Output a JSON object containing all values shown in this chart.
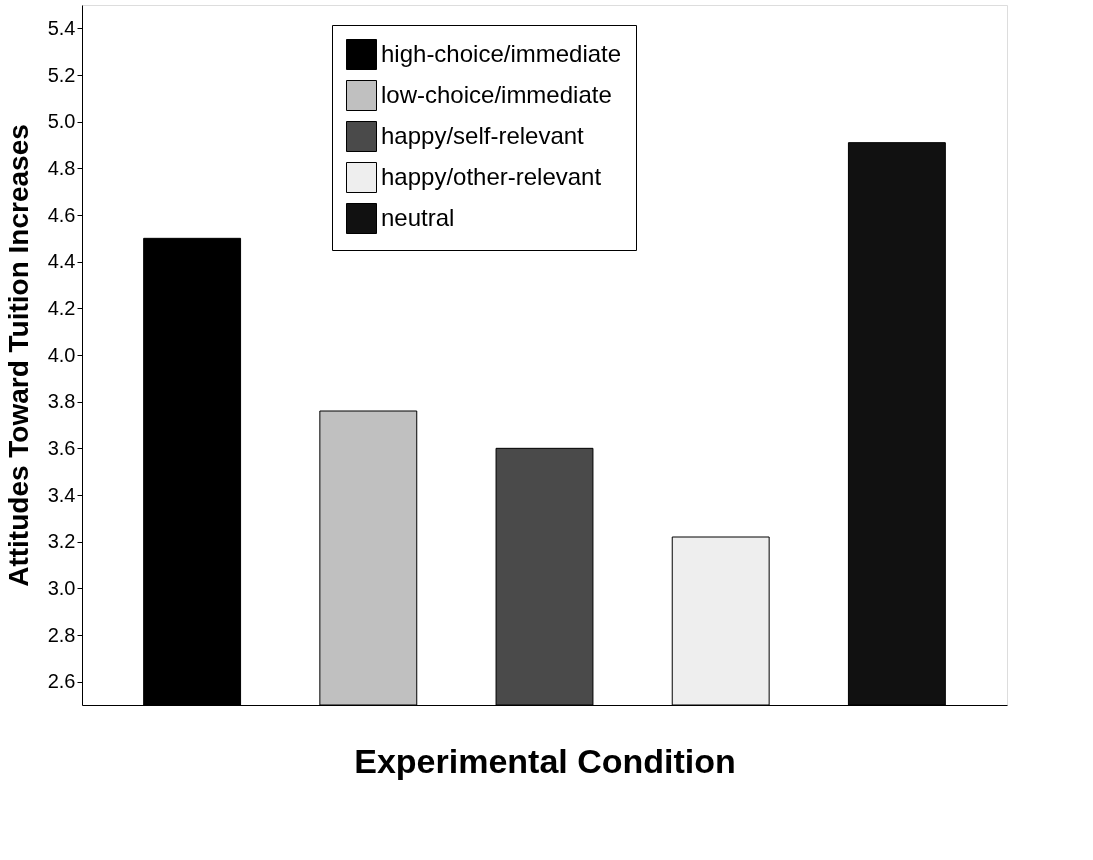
{
  "chart_data": {
    "type": "bar",
    "xlabel": "Experimental Condition",
    "ylabel": "Attitudes Toward Tuition Increases",
    "categories": [
      null,
      null,
      null,
      null,
      null
    ],
    "series": [
      {
        "name": "high-choice/immediate",
        "color": "#000000",
        "values": [
          4.5,
          null,
          null,
          null,
          null
        ]
      },
      {
        "name": "low-choice/immediate",
        "color": "#c0c0c0",
        "values": [
          null,
          3.76,
          null,
          null,
          null
        ]
      },
      {
        "name": "happy/self-relevant",
        "color": "#4a4a4a",
        "values": [
          null,
          null,
          3.6,
          null,
          null
        ]
      },
      {
        "name": "happy/other-relevant",
        "color": "#eeeeee",
        "values": [
          null,
          null,
          null,
          3.22,
          null
        ]
      },
      {
        "name": "neutral",
        "color": "#111111",
        "values": [
          null,
          null,
          null,
          null,
          4.91
        ]
      }
    ],
    "ylim": [
      2.5,
      5.5
    ],
    "yticks": [
      2.6,
      2.8,
      {
        "value": 3,
        "label": "3.0"
      },
      3.2,
      3.4,
      3.6,
      3.8,
      {
        "value": 4,
        "label": "4.0"
      },
      4.2,
      4.4,
      4.6,
      4.8,
      {
        "value": 5,
        "label": "5.0"
      },
      5.2,
      5.4
    ],
    "grid": false,
    "legend": "top",
    "tick_labels": "y"
  }
}
